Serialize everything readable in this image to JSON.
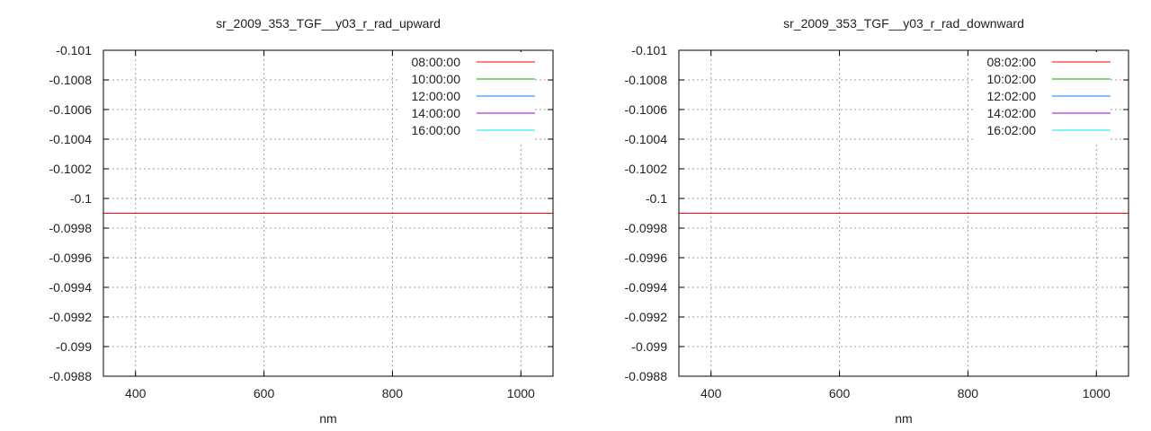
{
  "chart_data": [
    {
      "type": "line",
      "title": "sr_2009_353_TGF__y03_r_rad_upward",
      "xlabel": "nm",
      "ylabel": "",
      "xlim": [
        350,
        1050
      ],
      "ylim": [
        -0.101,
        -0.0988
      ],
      "y_reversed_labels": true,
      "xticks": [
        400,
        600,
        800,
        1000
      ],
      "yticks": [
        "-0.101",
        "-0.1008",
        "-0.1006",
        "-0.1004",
        "-0.1002",
        "-0.1",
        "-0.0998",
        "-0.0996",
        "-0.0994",
        "-0.0992",
        "-0.099",
        "-0.0988"
      ],
      "grid": true,
      "legend_position": "top-right",
      "series": [
        {
          "name": "08:00:00",
          "color": "#ff0000",
          "x": [
            350,
            1050
          ],
          "y": [
            -0.0999,
            -0.0999
          ]
        },
        {
          "name": "10:00:00",
          "color": "#00b000",
          "x": [
            350,
            1050
          ],
          "y": [
            -0.0999,
            -0.0999
          ]
        },
        {
          "name": "12:00:00",
          "color": "#0080ff",
          "x": [
            350,
            1050
          ],
          "y": [
            -0.0999,
            -0.0999
          ]
        },
        {
          "name": "14:00:00",
          "color": "#a000d0",
          "x": [
            350,
            1050
          ],
          "y": [
            -0.0999,
            -0.0999
          ]
        },
        {
          "name": "16:00:00",
          "color": "#00e8e8",
          "x": [
            350,
            1050
          ],
          "y": [
            -0.0999,
            -0.0999
          ]
        }
      ]
    },
    {
      "type": "line",
      "title": "sr_2009_353_TGF__y03_r_rad_downward",
      "xlabel": "nm",
      "ylabel": "",
      "xlim": [
        350,
        1050
      ],
      "ylim": [
        -0.101,
        -0.0988
      ],
      "y_reversed_labels": true,
      "xticks": [
        400,
        600,
        800,
        1000
      ],
      "yticks": [
        "-0.101",
        "-0.1008",
        "-0.1006",
        "-0.1004",
        "-0.1002",
        "-0.1",
        "-0.0998",
        "-0.0996",
        "-0.0994",
        "-0.0992",
        "-0.099",
        "-0.0988"
      ],
      "grid": true,
      "legend_position": "top-right",
      "series": [
        {
          "name": "08:02:00",
          "color": "#ff0000",
          "x": [
            350,
            1050
          ],
          "y": [
            -0.0999,
            -0.0999
          ]
        },
        {
          "name": "10:02:00",
          "color": "#00b000",
          "x": [
            350,
            1050
          ],
          "y": [
            -0.0999,
            -0.0999
          ]
        },
        {
          "name": "12:02:00",
          "color": "#0080ff",
          "x": [
            350,
            1050
          ],
          "y": [
            -0.0999,
            -0.0999
          ]
        },
        {
          "name": "14:02:00",
          "color": "#a000d0",
          "x": [
            350,
            1050
          ],
          "y": [
            -0.0999,
            -0.0999
          ]
        },
        {
          "name": "16:02:00",
          "color": "#00e8e8",
          "x": [
            350,
            1050
          ],
          "y": [
            -0.0999,
            -0.0999
          ]
        }
      ]
    }
  ]
}
